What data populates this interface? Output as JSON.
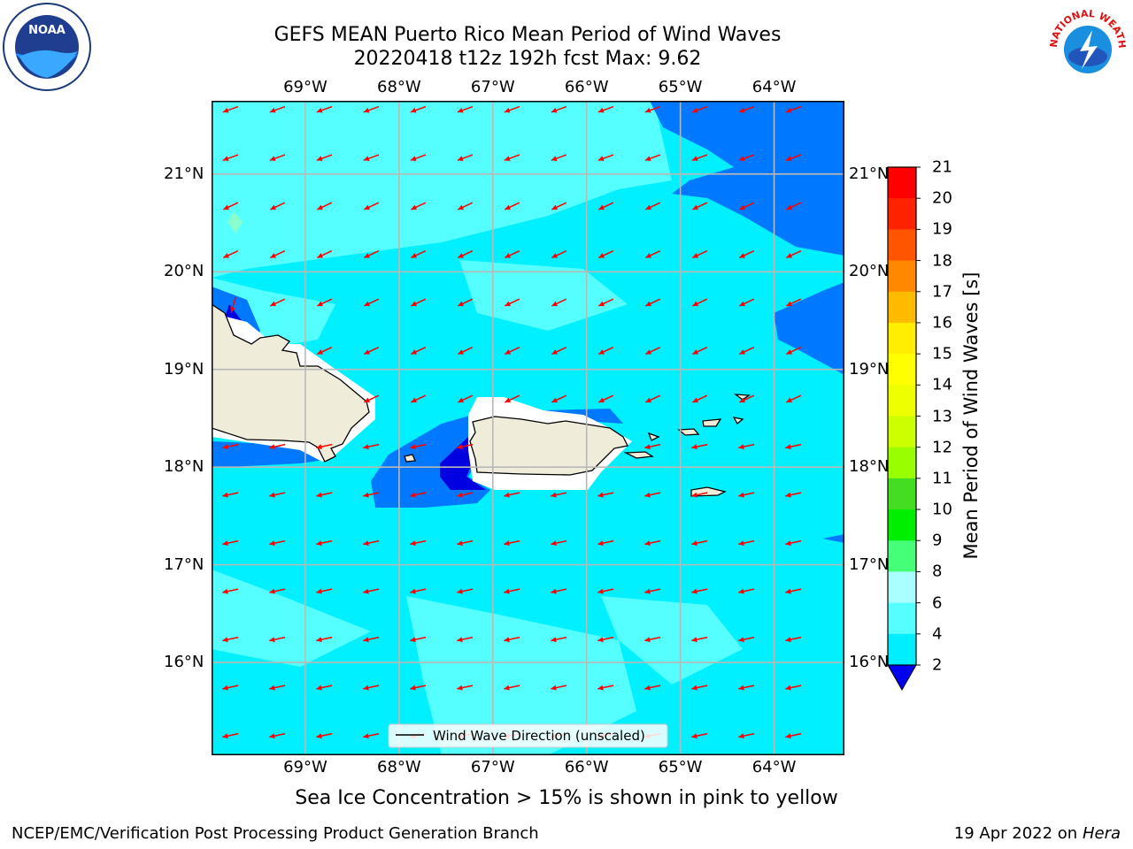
{
  "title": {
    "line1": "GEFS MEAN Puerto Rico Mean Period of Wind Waves",
    "line2": "20220418 t12z 192h fcst   Max: 9.62"
  },
  "logos": {
    "left": {
      "name": "noaa-logo",
      "text": "NOAA"
    },
    "right": {
      "name": "nws-logo",
      "text": "NATIONAL WEATHER SERVICE"
    }
  },
  "map": {
    "lon_labels": [
      "69°W",
      "68°W",
      "67°W",
      "66°W",
      "65°W",
      "64°W"
    ],
    "lat_labels": [
      "21°N",
      "20°N",
      "19°N",
      "18°N",
      "17°N",
      "16°N"
    ],
    "lon_values": [
      -69,
      -68,
      -67,
      -66,
      -65,
      -64
    ],
    "lat_values": [
      21,
      20,
      19,
      18,
      17,
      16
    ],
    "extent": {
      "lon": [
        -70,
        -63.25
      ],
      "lat": [
        15.05,
        21.75
      ]
    },
    "legend_label": "Wind Wave Direction (unscaled)",
    "arrow_color": "#ff0000",
    "land_color": "#efedda",
    "ocean_color": "#00f0ff"
  },
  "colorbar": {
    "label": "Mean Period of Wind Waves [s]",
    "ticks": [
      "21",
      "20",
      "19",
      "18",
      "17",
      "16",
      "15",
      "14",
      "13",
      "12",
      "11",
      "10",
      "9",
      "8",
      "6",
      "4",
      "2"
    ],
    "colors": [
      "#ff0000",
      "#ff2200",
      "#ff5500",
      "#ff8800",
      "#ffbb00",
      "#ffee00",
      "#ffff00",
      "#eeff00",
      "#ccff00",
      "#99ff00",
      "#44dd22",
      "#00ee00",
      "#44ff77",
      "#aaffff",
      "#55ffff",
      "#00eeff",
      "#0070ff"
    ],
    "under_color": "#0000ee"
  },
  "ice_note": "Sea Ice Concentration > 15% is shown in pink to yellow",
  "footer": {
    "left": "NCEP/EMC/Verification Post Processing Product Generation Branch",
    "right_date": "19 Apr 2022 on",
    "right_host": "Hera"
  }
}
